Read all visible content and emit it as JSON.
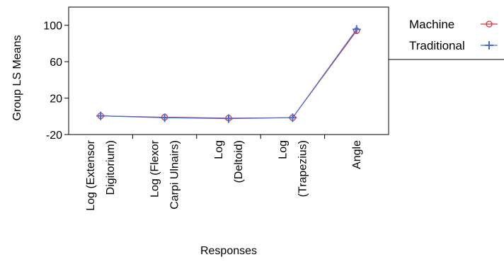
{
  "chart_data": {
    "type": "line",
    "xlabel": "Responses",
    "ylabel": "Group  LS Means",
    "ylim": [
      -20,
      120
    ],
    "yticks": [
      -20,
      20,
      60,
      100
    ],
    "categories": [
      [
        "Log (Extensor",
        "Digitorium)"
      ],
      [
        "Log (Flexor",
        "Carpi Ulnairs)"
      ],
      [
        "Log",
        "(Deltoid)"
      ],
      [
        "Log",
        "(Trapezius)"
      ],
      [
        "Angle"
      ]
    ],
    "series": [
      {
        "name": "Machine",
        "values": [
          0.5,
          -1.0,
          -2.0,
          -1.5,
          94.0
        ],
        "color": "#e0303a",
        "marker": "circle-icon"
      },
      {
        "name": "Traditional",
        "values": [
          0.5,
          -1.5,
          -2.5,
          -1.5,
          95.5
        ],
        "color": "#3b6fd6",
        "marker": "plus-icon"
      }
    ],
    "legend_placement": "right",
    "grid": false
  }
}
